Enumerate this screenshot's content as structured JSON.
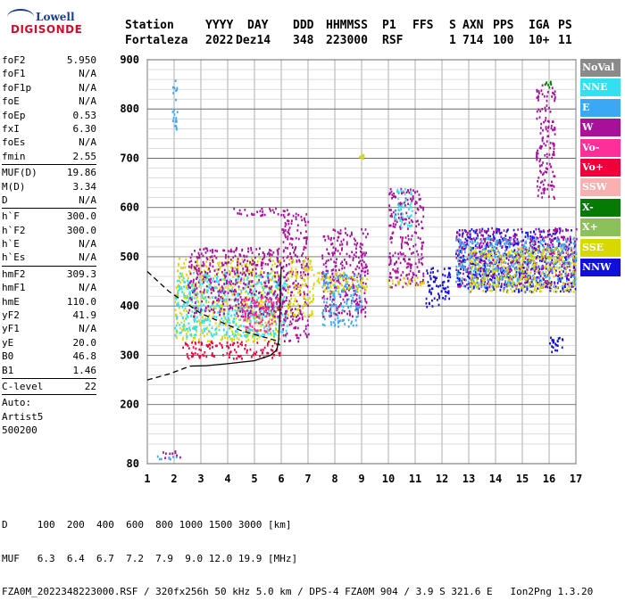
{
  "logo": {
    "line1": "Lowell",
    "line2": "DIGISONDE"
  },
  "header": {
    "labels": [
      "Station",
      "YYYY",
      "DAY",
      "DDD",
      "HHMMSS",
      "P1",
      "FFS",
      "S",
      "AXN",
      "PPS",
      "IGA",
      "PS"
    ],
    "values": [
      "Fortaleza",
      "2022",
      "Dez14",
      "348",
      "223000",
      "RSF",
      "1",
      "714",
      "100",
      "10+",
      "11"
    ]
  },
  "params": [
    {
      "k": "foF2",
      "v": "5.950"
    },
    {
      "k": "foF1",
      "v": "N/A"
    },
    {
      "k": "foF1p",
      "v": "N/A"
    },
    {
      "k": "foE",
      "v": "N/A"
    },
    {
      "k": "foEp",
      "v": "0.53"
    },
    {
      "k": "fxI",
      "v": "6.30"
    },
    {
      "k": "foEs",
      "v": "N/A"
    },
    {
      "k": "fmin",
      "v": "2.55",
      "sep": true
    },
    {
      "k": "MUF(D)",
      "v": "19.86"
    },
    {
      "k": "M(D)",
      "v": "3.34"
    },
    {
      "k": "D",
      "v": "N/A",
      "sep": true
    },
    {
      "k": "h`F",
      "v": "300.0"
    },
    {
      "k": "h`F2",
      "v": "300.0"
    },
    {
      "k": "h`E",
      "v": "N/A"
    },
    {
      "k": "h`Es",
      "v": "N/A",
      "sep": true
    },
    {
      "k": "hmF2",
      "v": "309.3"
    },
    {
      "k": "hmF1",
      "v": "N/A"
    },
    {
      "k": "hmE",
      "v": "110.0"
    },
    {
      "k": "yF2",
      "v": "41.9"
    },
    {
      "k": "yF1",
      "v": "N/A"
    },
    {
      "k": "yE",
      "v": "20.0"
    },
    {
      "k": "B0",
      "v": "46.8"
    },
    {
      "k": "B1",
      "v": "1.46",
      "sep": true
    },
    {
      "k": "C-level",
      "v": "22",
      "sep": true
    },
    {
      "k": "Auto:",
      "v": ""
    },
    {
      "k": "Artist5",
      "v": ""
    },
    {
      "k": "500200",
      "v": ""
    }
  ],
  "legend": [
    {
      "label": "NoVal",
      "color": "#8a8a8a"
    },
    {
      "label": "NNE",
      "color": "#33e0f0"
    },
    {
      "label": "E",
      "color": "#3aa8f5"
    },
    {
      "label": "W",
      "color": "#a8109a"
    },
    {
      "label": "Vo-",
      "color": "#ff2f9a"
    },
    {
      "label": "Vo+",
      "color": "#f0003a"
    },
    {
      "label": "SSW",
      "color": "#f8b0b0"
    },
    {
      "label": "X-",
      "color": "#057a05"
    },
    {
      "label": "X+",
      "color": "#8cc05a"
    },
    {
      "label": "SSE",
      "color": "#d8d800"
    },
    {
      "label": "NNW",
      "color": "#1010d8"
    }
  ],
  "footer": {
    "line1": "D     100  200  400  600  800 1000 1500 3000 [km]",
    "line2": "MUF   6.3  6.4  6.7  7.2  7.9  9.0 12.0 19.9 [MHz]",
    "line3": "FZA0M_2022348223000.RSF / 320fx256h 50 kHz 5.0 km / DPS-4 FZA0M 904 / 3.9 S 321.6 E   Ion2Png 1.3.20"
  },
  "chart_data": {
    "type": "scatter",
    "title": "",
    "xlabel": "",
    "ylabel": "",
    "xlim": [
      1,
      17
    ],
    "ylim": [
      80,
      900
    ],
    "xticks": [
      1,
      2,
      3,
      4,
      5,
      6,
      7,
      8,
      9,
      10,
      11,
      12,
      13,
      14,
      15,
      16,
      17
    ],
    "yticks": [
      80,
      200,
      300,
      400,
      500,
      600,
      700,
      800,
      900
    ],
    "grid": true,
    "profile": {
      "solid": [
        [
          6.0,
          480
        ],
        [
          5.97,
          440
        ],
        [
          5.95,
          380
        ],
        [
          5.9,
          330
        ],
        [
          5.85,
          315
        ],
        [
          5.8,
          309.3
        ],
        [
          5.6,
          300
        ],
        [
          5.0,
          289
        ],
        [
          4.0,
          283
        ],
        [
          3.2,
          279
        ],
        [
          2.6,
          278
        ]
      ],
      "dashed_upper": [
        [
          1.0,
          470
        ],
        [
          1.8,
          430
        ],
        [
          3.0,
          385
        ],
        [
          4.5,
          350
        ],
        [
          5.8,
          330
        ],
        [
          5.95,
          320
        ]
      ],
      "dashed_lower": [
        [
          1.0,
          250
        ],
        [
          1.8,
          262
        ],
        [
          2.6,
          278
        ]
      ]
    },
    "echo_clusters": [
      {
        "x": [
          1.9,
          2.1
        ],
        "y": [
          740,
          860
        ],
        "color": "#3aa8f5"
      },
      {
        "x": [
          2.0,
          6.0
        ],
        "y": [
          330,
          500
        ],
        "color": "#d8d800"
      },
      {
        "x": [
          2.0,
          6.2
        ],
        "y": [
          340,
          470
        ],
        "color": "#33e0f0"
      },
      {
        "x": [
          2.5,
          6.0
        ],
        "y": [
          380,
          520
        ],
        "color": "#a8109a"
      },
      {
        "x": [
          2.3,
          6.0
        ],
        "y": [
          295,
          330
        ],
        "color": "#f0003a"
      },
      {
        "x": [
          4.5,
          6.0
        ],
        "y": [
          350,
          420
        ],
        "color": "#ff2f9a"
      },
      {
        "x": [
          4.0,
          6.2
        ],
        "y": [
          585,
          600
        ],
        "color": "#a8109a"
      },
      {
        "x": [
          6.0,
          7.0
        ],
        "y": [
          330,
          590
        ],
        "color": "#a8109a"
      },
      {
        "x": [
          6.2,
          7.2
        ],
        "y": [
          380,
          500
        ],
        "color": "#d8d800"
      },
      {
        "x": [
          7.5,
          9.2
        ],
        "y": [
          380,
          560
        ],
        "color": "#a8109a"
      },
      {
        "x": [
          7.5,
          9.0
        ],
        "y": [
          360,
          470
        ],
        "color": "#3aa8f5"
      },
      {
        "x": [
          7.3,
          9.2
        ],
        "y": [
          430,
          470
        ],
        "color": "#d8d800"
      },
      {
        "x": [
          8.9,
          9.1
        ],
        "y": [
          700,
          710
        ],
        "color": "#d8d800"
      },
      {
        "x": [
          10.0,
          11.3
        ],
        "y": [
          440,
          640
        ],
        "color": "#a8109a"
      },
      {
        "x": [
          9.9,
          11.3
        ],
        "y": [
          440,
          460
        ],
        "color": "#d8d800"
      },
      {
        "x": [
          10.2,
          10.9
        ],
        "y": [
          560,
          640
        ],
        "color": "#33e0f0"
      },
      {
        "x": [
          11.3,
          12.3
        ],
        "y": [
          400,
          480
        ],
        "color": "#1010d8"
      },
      {
        "x": [
          12.5,
          17.0
        ],
        "y": [
          430,
          560
        ],
        "color": "#1010d8"
      },
      {
        "x": [
          12.5,
          17.0
        ],
        "y": [
          440,
          560
        ],
        "color": "#a8109a"
      },
      {
        "x": [
          12.5,
          17.0
        ],
        "y": [
          440,
          540
        ],
        "color": "#3aa8f5"
      },
      {
        "x": [
          13.0,
          17.0
        ],
        "y": [
          430,
          520
        ],
        "color": "#d8d800"
      },
      {
        "x": [
          15.5,
          16.2
        ],
        "y": [
          620,
          860
        ],
        "color": "#a8109a"
      },
      {
        "x": [
          15.8,
          16.1
        ],
        "y": [
          840,
          860
        ],
        "color": "#057a05"
      },
      {
        "x": [
          16.0,
          16.6
        ],
        "y": [
          300,
          340
        ],
        "color": "#1010d8"
      },
      {
        "x": [
          1.5,
          2.2
        ],
        "y": [
          92,
          110
        ],
        "color": "#a8109a"
      },
      {
        "x": [
          1.3,
          2.1
        ],
        "y": [
          90,
          98
        ],
        "color": "#3aa8f5"
      }
    ]
  }
}
